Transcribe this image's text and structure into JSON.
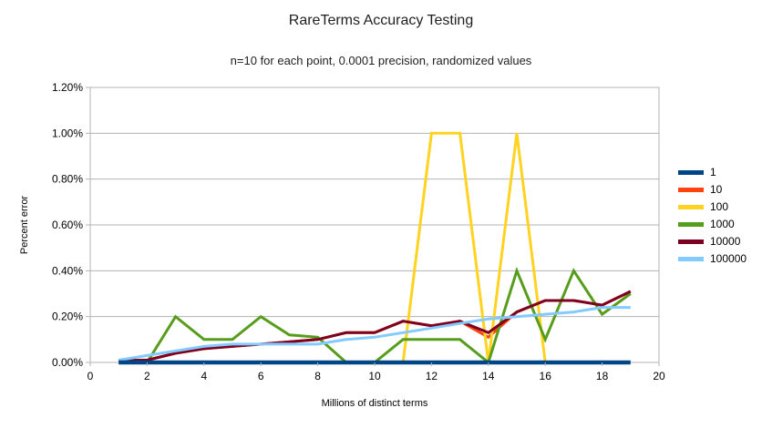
{
  "chart_data": {
    "type": "line",
    "title": "RareTerms Accuracy Testing",
    "subtitle": "n=10 for each point, 0.0001 precision, randomized values",
    "xlabel": "Millions of distinct terms",
    "ylabel": "Percent error",
    "xlim": [
      0,
      20
    ],
    "ylim": [
      0,
      1.2
    ],
    "x_ticks": [
      0,
      2,
      4,
      6,
      8,
      10,
      12,
      14,
      16,
      18,
      20
    ],
    "x_tick_labels": [
      "0",
      "2",
      "4",
      "6",
      "8",
      "10",
      "12",
      "14",
      "16",
      "18",
      "20"
    ],
    "y_ticks": [
      0,
      0.2,
      0.4,
      0.6,
      0.8,
      1.0,
      1.2
    ],
    "y_tick_labels": [
      "0.00%",
      "0.20%",
      "0.40%",
      "0.60%",
      "0.80%",
      "1.00%",
      "1.20%"
    ],
    "grid": "horizontal",
    "legend_position": "right",
    "grid_color": "#b3b3b3",
    "x": [
      1,
      2,
      3,
      4,
      5,
      6,
      7,
      8,
      9,
      10,
      11,
      12,
      13,
      14,
      15,
      16,
      17,
      18,
      19
    ],
    "series": [
      {
        "name": "1",
        "color": "#004586",
        "values": [
          0,
          0,
          0,
          0,
          0,
          0,
          0,
          0,
          0,
          0,
          0,
          0,
          0,
          0,
          0,
          0,
          0,
          0,
          0
        ]
      },
      {
        "name": "10",
        "color": "#FF420E",
        "values": [
          0.01,
          0.01,
          0.04,
          0.06,
          0.07,
          0.08,
          0.09,
          0.1,
          0.13,
          0.13,
          0.18,
          0.16,
          0.18,
          0.11,
          0.22,
          0.27,
          0.27,
          0.25,
          0.31
        ]
      },
      {
        "name": "100",
        "color": "#FFD320",
        "x": [
          11,
          12,
          13,
          14,
          15,
          16
        ],
        "values": [
          0,
          1.0,
          1.0,
          0,
          1.0,
          0
        ]
      },
      {
        "name": "1000",
        "color": "#579D1C",
        "values": [
          0,
          0,
          0.2,
          0.1,
          0.1,
          0.2,
          0.12,
          0.11,
          0,
          0,
          0.1,
          0.1,
          0.1,
          0,
          0.4,
          0.1,
          0.4,
          0.21,
          0.3
        ]
      },
      {
        "name": "10000",
        "color": "#7E0021",
        "values": [
          0.01,
          0.01,
          0.04,
          0.06,
          0.07,
          0.08,
          0.09,
          0.1,
          0.13,
          0.13,
          0.18,
          0.16,
          0.18,
          0.13,
          0.22,
          0.27,
          0.27,
          0.25,
          0.31
        ]
      },
      {
        "name": "100000",
        "color": "#83CAFF",
        "values": [
          0.01,
          0.03,
          0.05,
          0.07,
          0.08,
          0.08,
          0.08,
          0.08,
          0.1,
          0.11,
          0.13,
          0.15,
          0.17,
          0.19,
          0.2,
          0.21,
          0.22,
          0.24,
          0.24
        ]
      }
    ]
  }
}
